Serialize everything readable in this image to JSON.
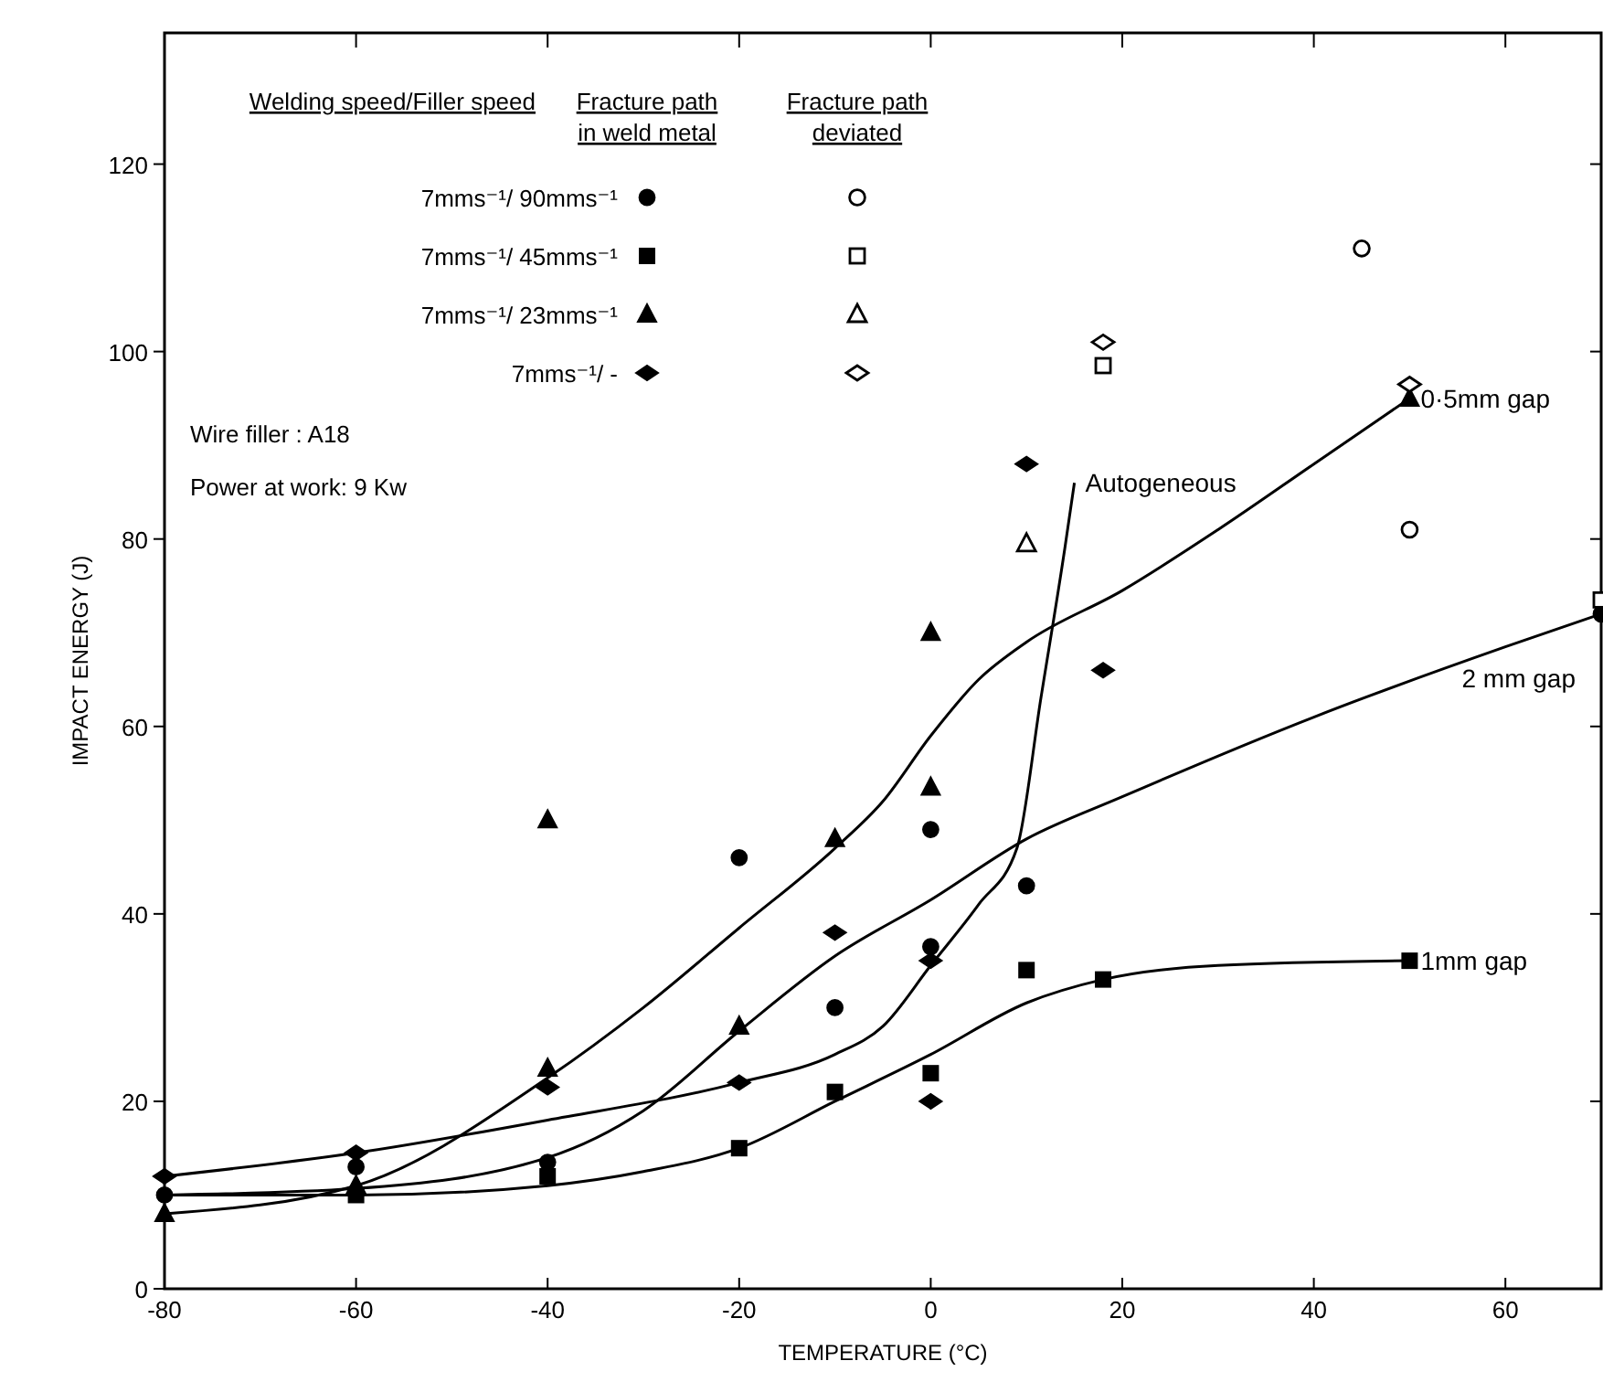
{
  "chart_data": {
    "type": "scatter",
    "xlabel": "TEMPERATURE (°C)",
    "ylabel": "IMPACT ENERGY (J)",
    "xlim": [
      -80,
      70
    ],
    "xticks": [
      -80,
      -60,
      -40,
      -20,
      0,
      20,
      40,
      60
    ],
    "ylim": [
      0,
      134
    ],
    "yticks": [
      0,
      20,
      40,
      60,
      80,
      100,
      120
    ],
    "legend": "top left",
    "legend_title": "Welding speed/Filler speed",
    "annotations": [
      "Fracture path\nin weld metal",
      "Fracture path\ndeviated",
      "Wire filler : A18",
      "Power at work: 9 Kw"
    ],
    "series": [
      {
        "name": "7mms⁻¹/ 90mms⁻¹",
        "marker": "circle",
        "color": "#000000",
        "x": [
          -80,
          -60,
          -40,
          -20,
          -10,
          0,
          0,
          10,
          70
        ],
        "values": [
          10,
          13,
          13.5,
          46,
          30,
          49,
          36.5,
          43,
          72
        ]
      },
      {
        "name": "7mms⁻¹/ 45mms⁻¹",
        "marker": "square",
        "color": "#000000",
        "x": [
          -60,
          -40,
          -20,
          -10,
          0,
          10,
          18,
          50
        ],
        "values": [
          10,
          12,
          15,
          21,
          23,
          34,
          33,
          35
        ]
      },
      {
        "name": "7mms⁻¹/ 23mms⁻¹",
        "marker": "triangle",
        "color": "#000000",
        "x": [
          -80,
          -60,
          -40,
          -40,
          -20,
          -10,
          0,
          0,
          50
        ],
        "values": [
          8,
          11,
          23.5,
          50,
          28,
          48,
          70,
          53.5,
          95
        ]
      },
      {
        "name": "7mms⁻¹/ -",
        "marker": "diamond",
        "color": "#000000",
        "x": [
          -80,
          -60,
          -40,
          -20,
          -10,
          0,
          0,
          10,
          18
        ],
        "values": [
          12,
          14.5,
          21.5,
          22,
          38,
          35,
          20,
          88,
          66
        ]
      },
      {
        "marker": "circle-open",
        "color": "#000000",
        "x": [
          45,
          50
        ],
        "values": [
          111,
          81
        ]
      },
      {
        "marker": "square-open",
        "color": "#000000",
        "x": [
          18,
          70
        ],
        "values": [
          98.5,
          73.5
        ]
      },
      {
        "marker": "triangle-open",
        "color": "#000000",
        "x": [
          10
        ],
        "values": [
          79.5
        ]
      },
      {
        "marker": "diamond-open",
        "color": "#000000",
        "x": [
          18,
          50
        ],
        "values": [
          101,
          96.5
        ]
      },
      {
        "name": "0·5mm gap",
        "type": "line",
        "marker": "none",
        "color": "#000000",
        "x": [
          -80,
          -60,
          -40,
          -30,
          -20,
          -10,
          -5,
          0,
          5,
          10,
          20,
          30,
          40,
          50
        ],
        "values": [
          8,
          11,
          22.5,
          30,
          38.5,
          47,
          52,
          59,
          65,
          69,
          74.5,
          81,
          88,
          95
        ]
      },
      {
        "name": "2 mm gap",
        "type": "line",
        "marker": "none",
        "color": "#000000",
        "x": [
          -80,
          -60,
          -40,
          -30,
          -20,
          -10,
          0,
          10,
          20,
          40,
          60,
          70
        ],
        "values": [
          10,
          10.7,
          14,
          19,
          27.5,
          35.5,
          41.5,
          48,
          52.5,
          61,
          68.5,
          72
        ]
      },
      {
        "name": "1mm gap",
        "type": "line",
        "marker": "none",
        "color": "#000000",
        "x": [
          -80,
          -60,
          -40,
          -30,
          -20,
          -10,
          0,
          10,
          18,
          30,
          50
        ],
        "values": [
          10,
          10,
          11,
          12.5,
          15,
          20,
          25,
          30.5,
          33,
          34.5,
          35
        ]
      },
      {
        "name": "Autogeneous",
        "type": "line",
        "marker": "none",
        "color": "#000000",
        "x": [
          -80,
          -60,
          -40,
          -20,
          -10,
          -5,
          0,
          5,
          9,
          11.5,
          14,
          15
        ],
        "values": [
          12,
          14.5,
          18,
          22,
          25,
          28,
          34.5,
          41,
          47,
          63,
          79,
          86
        ]
      }
    ]
  }
}
